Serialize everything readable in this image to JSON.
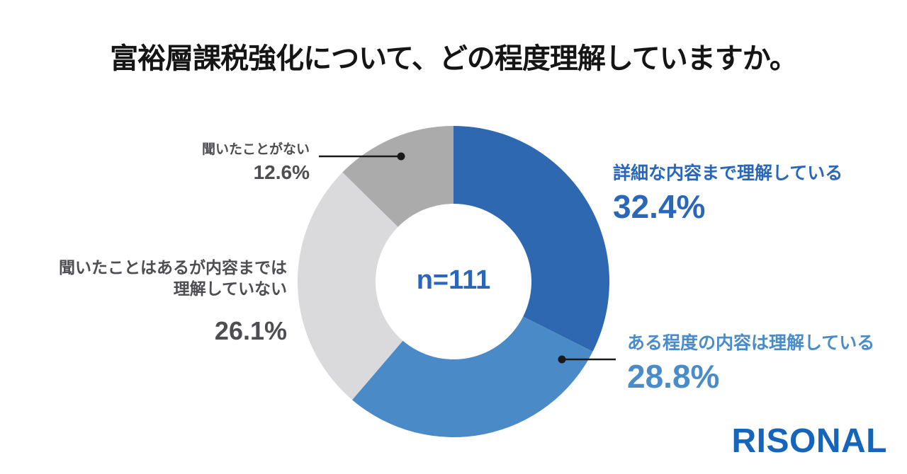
{
  "title": "富裕層課税強化について、どの程度理解していますか。",
  "center_label": "n=111",
  "logo_text": "RISONAL",
  "chart_data": {
    "type": "pie",
    "subtype": "donut",
    "title": "富裕層課税強化について、どの程度理解していますか。",
    "center_label": "n=111",
    "sample_size": 111,
    "unit": "%",
    "start_angle_deg": 0,
    "direction": "clockwise",
    "legend_position": "callout-labels",
    "inner_radius_ratio": 0.5,
    "segments": [
      {
        "label": "詳細な内容まで理解している",
        "value": 32.4,
        "display": "32.4%",
        "color": "#2E68B0"
      },
      {
        "label": "ある程度の内容は理解している",
        "value": 28.8,
        "display": "28.8%",
        "color": "#4A8BC7"
      },
      {
        "label": "聞いたことはあるが内容までは理解していない",
        "value": 26.1,
        "display": "26.1%",
        "color": "#DADADC"
      },
      {
        "label": "聞いたことがない",
        "value": 12.6,
        "display": "12.6%",
        "color": "#ABABAB"
      }
    ]
  },
  "callouts": {
    "detail": {
      "label": "詳細な内容まで理解している",
      "value": "32.4%"
    },
    "some": {
      "label": "ある程度の内容は理解している",
      "value": "28.8%"
    },
    "heard": {
      "label_line1": "聞いたことはあるが内容までは",
      "label_line2": "理解していない",
      "value": "26.1%"
    },
    "never": {
      "label": "聞いたことがない",
      "value": "12.6%"
    }
  },
  "colors": {
    "title-color": "#151515",
    "blue-dark-text": "#2B67B8",
    "blue-light-text": "#4A8CC9",
    "gray-text": "#4D4D52",
    "leader-color": "#1A1A1A",
    "brand-blue": "#1565BB"
  }
}
